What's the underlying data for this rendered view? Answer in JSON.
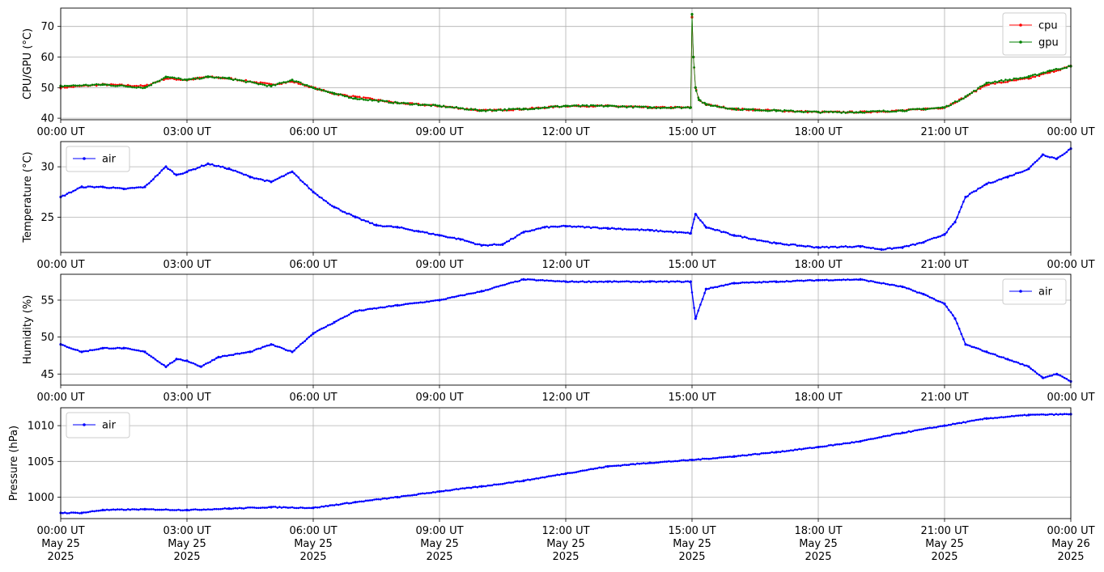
{
  "colors": {
    "cpu": "#ff0000",
    "gpu": "#008000",
    "air": "#0000ff",
    "grid": "#b0b0b0",
    "legend_border": "#cccccc"
  },
  "x_ticks": [
    "00:00 UT",
    "03:00 UT",
    "06:00 UT",
    "09:00 UT",
    "12:00 UT",
    "15:00 UT",
    "18:00 UT",
    "21:00 UT",
    "00:00 UT"
  ],
  "x_date_lines": [
    "May 25",
    "May 25",
    "May 25",
    "May 25",
    "May 25",
    "May 25",
    "May 25",
    "May 25",
    "May 26"
  ],
  "x_year_lines": [
    "2025",
    "2025",
    "2025",
    "2025",
    "2025",
    "2025",
    "2025",
    "2025",
    "2025"
  ],
  "chart_data": [
    {
      "type": "line",
      "ylabel": "CPU/GPU (°C)",
      "ylim": [
        39.5,
        76
      ],
      "yticks": [
        40,
        50,
        60,
        70
      ],
      "grid": true,
      "legend": "top-right",
      "x": [
        "00:00",
        "01:00",
        "02:00",
        "02:30",
        "03:00",
        "03:30",
        "04:00",
        "05:00",
        "05:30",
        "06:00",
        "06:30",
        "07:00",
        "08:00",
        "09:00",
        "10:00",
        "11:00",
        "12:00",
        "13:00",
        "14:00",
        "14:58",
        "15:00",
        "15:02",
        "15:05",
        "15:10",
        "15:20",
        "16:00",
        "17:00",
        "18:00",
        "19:00",
        "20:00",
        "20:30",
        "21:00",
        "21:30",
        "22:00",
        "23:00",
        "23:30",
        "24:00"
      ],
      "series": [
        {
          "name": "cpu",
          "values": [
            50.0,
            51.0,
            50.5,
            53.0,
            52.5,
            53.5,
            53.0,
            51.0,
            52.0,
            50.0,
            48.0,
            47.0,
            45.0,
            44.0,
            42.5,
            43.0,
            44.0,
            44.0,
            43.5,
            43.5,
            73.0,
            60.0,
            50.0,
            46.0,
            44.5,
            43.0,
            42.5,
            42.0,
            42.0,
            42.5,
            43.0,
            43.5,
            47.0,
            51.0,
            53.0,
            55.0,
            57.0
          ]
        },
        {
          "name": "gpu",
          "values": [
            50.5,
            51.0,
            50.0,
            53.5,
            52.5,
            53.5,
            53.0,
            50.5,
            52.5,
            50.0,
            48.0,
            46.5,
            45.0,
            44.0,
            42.5,
            43.0,
            44.0,
            44.0,
            43.5,
            43.5,
            74.0,
            60.0,
            50.0,
            46.0,
            44.5,
            43.0,
            42.5,
            42.0,
            42.0,
            42.5,
            43.0,
            43.5,
            47.0,
            51.5,
            53.5,
            55.5,
            57.0
          ]
        }
      ]
    },
    {
      "type": "line",
      "ylabel": "Temperature (°C)",
      "ylim": [
        21.5,
        32.5
      ],
      "yticks": [
        25,
        30
      ],
      "grid": true,
      "legend": "top-left",
      "x": [
        "00:00",
        "00:30",
        "01:00",
        "01:30",
        "02:00",
        "02:30",
        "02:45",
        "03:00",
        "03:30",
        "04:00",
        "04:30",
        "05:00",
        "05:30",
        "06:00",
        "06:30",
        "07:00",
        "07:30",
        "08:00",
        "08:30",
        "09:00",
        "09:30",
        "10:00",
        "10:30",
        "11:00",
        "11:30",
        "12:00",
        "13:00",
        "14:00",
        "14:58",
        "15:05",
        "15:20",
        "16:00",
        "17:00",
        "18:00",
        "19:00",
        "19:30",
        "20:00",
        "20:30",
        "21:00",
        "21:15",
        "21:30",
        "22:00",
        "22:30",
        "23:00",
        "23:20",
        "23:40",
        "24:00"
      ],
      "series": [
        {
          "name": "air",
          "values": [
            27.0,
            28.0,
            28.0,
            27.8,
            28.0,
            30.0,
            29.2,
            29.5,
            30.3,
            29.8,
            29.0,
            28.5,
            29.5,
            27.5,
            26.0,
            25.0,
            24.2,
            24.0,
            23.6,
            23.2,
            22.8,
            22.2,
            22.3,
            23.5,
            24.0,
            24.1,
            23.9,
            23.7,
            23.4,
            25.3,
            24.0,
            23.2,
            22.4,
            22.0,
            22.1,
            21.8,
            22.0,
            22.5,
            23.3,
            24.5,
            27.0,
            28.3,
            29.0,
            29.8,
            31.2,
            30.8,
            31.8
          ]
        }
      ]
    },
    {
      "type": "line",
      "ylabel": "Humidity (%)",
      "ylim": [
        43.5,
        58.5
      ],
      "yticks": [
        45,
        50,
        55
      ],
      "grid": true,
      "legend": "top-right",
      "x": [
        "00:00",
        "00:30",
        "01:00",
        "01:30",
        "02:00",
        "02:30",
        "02:45",
        "03:00",
        "03:20",
        "03:45",
        "04:30",
        "05:00",
        "05:30",
        "06:00",
        "06:30",
        "07:00",
        "08:00",
        "09:00",
        "10:00",
        "11:00",
        "12:00",
        "13:00",
        "14:00",
        "14:58",
        "15:05",
        "15:20",
        "16:00",
        "17:00",
        "18:00",
        "19:00",
        "20:00",
        "20:30",
        "21:00",
        "21:15",
        "21:30",
        "22:00",
        "22:30",
        "23:00",
        "23:20",
        "23:40",
        "24:00"
      ],
      "series": [
        {
          "name": "air",
          "values": [
            49.0,
            48.0,
            48.5,
            48.5,
            48.0,
            46.0,
            47.0,
            46.8,
            46.0,
            47.3,
            48.0,
            49.0,
            48.0,
            50.5,
            52.0,
            53.5,
            54.3,
            55.0,
            56.2,
            57.8,
            57.5,
            57.5,
            57.5,
            57.5,
            52.5,
            56.5,
            57.3,
            57.5,
            57.7,
            57.8,
            56.8,
            55.8,
            54.5,
            52.5,
            49.0,
            48.0,
            47.0,
            46.0,
            44.5,
            45.0,
            44.0
          ]
        }
      ]
    },
    {
      "type": "line",
      "ylabel": "Pressure (hPa)",
      "ylim": [
        997,
        1012.5
      ],
      "yticks": [
        1000,
        1005,
        1010
      ],
      "grid": true,
      "legend": "top-left",
      "x": [
        "00:00",
        "00:30",
        "01:00",
        "02:00",
        "03:00",
        "04:00",
        "05:00",
        "06:00",
        "07:00",
        "08:00",
        "09:00",
        "10:00",
        "11:00",
        "12:00",
        "13:00",
        "14:00",
        "15:00",
        "16:00",
        "17:00",
        "18:00",
        "19:00",
        "20:00",
        "21:00",
        "22:00",
        "23:00",
        "24:00"
      ],
      "series": [
        {
          "name": "air",
          "values": [
            997.8,
            997.8,
            998.2,
            998.3,
            998.2,
            998.4,
            998.6,
            998.5,
            999.3,
            1000.0,
            1000.8,
            1001.5,
            1002.3,
            1003.3,
            1004.3,
            1004.8,
            1005.2,
            1005.7,
            1006.3,
            1007.0,
            1007.8,
            1009.0,
            1010.0,
            1011.0,
            1011.5,
            1011.6
          ]
        }
      ]
    }
  ]
}
